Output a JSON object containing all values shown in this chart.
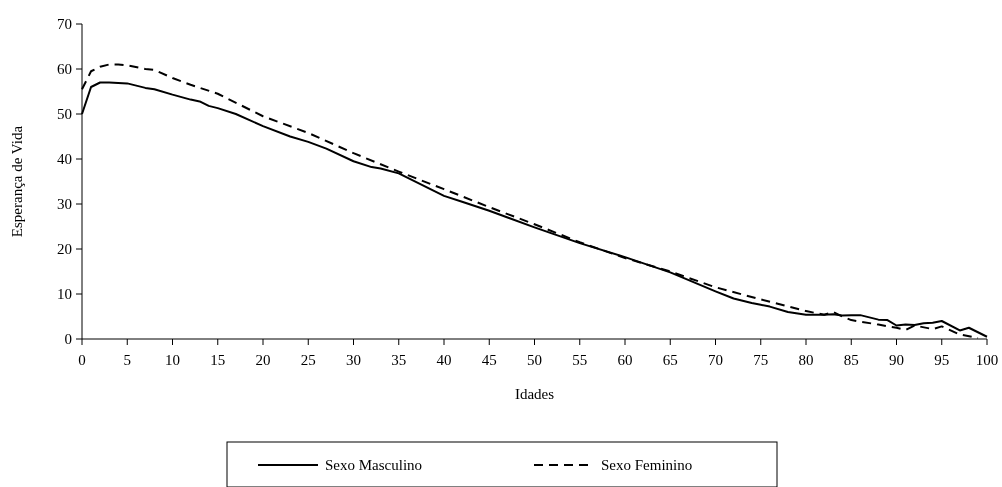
{
  "chart_data": {
    "type": "line",
    "xlabel": "Idades",
    "ylabel": "Esperança de Vida",
    "xlim": [
      0,
      100
    ],
    "xticks": [
      0,
      5,
      10,
      15,
      20,
      25,
      30,
      35,
      40,
      45,
      50,
      55,
      60,
      65,
      70,
      75,
      80,
      85,
      90,
      95,
      100
    ],
    "ylim": [
      0,
      70
    ],
    "yticks": [
      0,
      10,
      20,
      30,
      40,
      50,
      60,
      70
    ],
    "legend": "bottom",
    "grid": false,
    "series": [
      {
        "name": "Sexo Masculino",
        "color": "#000000",
        "line_style": "solid",
        "x": [
          0,
          1,
          2,
          3,
          5,
          7,
          8,
          10,
          12,
          13,
          14,
          15,
          17,
          20,
          23,
          25,
          27,
          30,
          32,
          33,
          35,
          40,
          42,
          45,
          50,
          55,
          60,
          65,
          70,
          72,
          74,
          75,
          76,
          78,
          80,
          82,
          83,
          84,
          85,
          86,
          88,
          89,
          90,
          91,
          92,
          93,
          94,
          95,
          97,
          98,
          100
        ],
        "values": [
          50,
          56,
          57,
          57,
          56.8,
          55.8,
          55.5,
          54.3,
          53.2,
          52.8,
          51.8,
          51.3,
          50,
          47.3,
          45,
          43.8,
          42.3,
          39.5,
          38.2,
          37.9,
          36.8,
          31.8,
          30.5,
          28.5,
          24.8,
          21.3,
          18.2,
          14.8,
          10.6,
          9,
          8,
          7.6,
          7.2,
          6,
          5.4,
          5.4,
          5.5,
          5.2,
          5.3,
          5.3,
          4.3,
          4.2,
          3,
          3.2,
          3.1,
          3.5,
          3.6,
          4,
          1.9,
          2.5,
          0.5
        ]
      },
      {
        "name": "Sexo Feminino",
        "color": "#000000",
        "line_style": "dashed",
        "x": [
          0,
          1,
          2,
          3,
          4,
          5,
          7,
          8,
          10,
          12,
          15,
          20,
          25,
          30,
          35,
          40,
          45,
          50,
          55,
          60,
          65,
          70,
          75,
          80,
          82,
          83,
          84,
          85,
          88,
          90,
          91,
          92,
          94,
          95,
          97,
          99
        ],
        "values": [
          55.5,
          59.5,
          60.5,
          61,
          61,
          60.8,
          60,
          59.8,
          58,
          56.5,
          54.5,
          49.5,
          45.8,
          41.3,
          37.2,
          33.3,
          29.3,
          25.5,
          21.5,
          18,
          15,
          11.5,
          8.8,
          6.2,
          5.4,
          6,
          5,
          4.2,
          3.2,
          2.5,
          2,
          3,
          2.2,
          2.8,
          1,
          0.2
        ]
      }
    ]
  }
}
